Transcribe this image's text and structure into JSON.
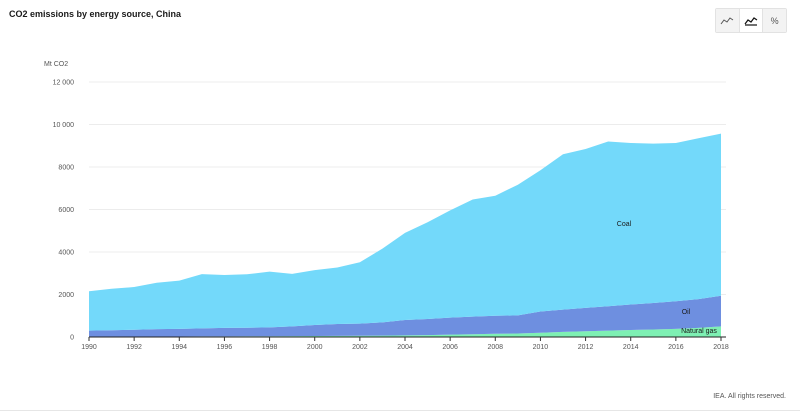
{
  "header": {
    "title": "CO2 emissions by energy source, China"
  },
  "view_buttons": [
    {
      "name": "line-view-button",
      "icon": "line-chart-icon",
      "label": "",
      "active": false
    },
    {
      "name": "area-view-button",
      "icon": "area-chart-icon",
      "label": "",
      "active": true
    },
    {
      "name": "percent-view-button",
      "icon": "percent-icon",
      "label": "%",
      "active": false
    }
  ],
  "footer": {
    "credit": "IEA. All rights reserved."
  },
  "chart_data": {
    "type": "area",
    "stacked": true,
    "title": "CO2 emissions by energy source, China",
    "unit_label": "Mt CO2",
    "xlabel": "",
    "ylabel": "Mt CO2",
    "xlim": [
      1990,
      2018
    ],
    "ylim": [
      0,
      12000
    ],
    "yticks": [
      0,
      2000,
      4000,
      6000,
      8000,
      10000,
      12000
    ],
    "ytick_labels": [
      "0",
      "2000",
      "4000",
      "6000",
      "8000",
      "10 000",
      "12 000"
    ],
    "xticks": [
      1990,
      1992,
      1994,
      1996,
      1998,
      2000,
      2002,
      2004,
      2006,
      2008,
      2010,
      2012,
      2014,
      2016,
      2018
    ],
    "grid": true,
    "legend": "inline labels",
    "x": [
      1990,
      1991,
      1992,
      1993,
      1994,
      1995,
      1996,
      1997,
      1998,
      1999,
      2000,
      2001,
      2002,
      2003,
      2004,
      2005,
      2006,
      2007,
      2008,
      2009,
      2010,
      2011,
      2012,
      2013,
      2014,
      2015,
      2016,
      2017,
      2018
    ],
    "series": [
      {
        "name": "Natural gas",
        "color": "#7ef0b3",
        "values": [
          20,
          20,
          22,
          23,
          25,
          27,
          30,
          33,
          35,
          40,
          45,
          52,
          58,
          67,
          78,
          90,
          110,
          130,
          150,
          165,
          200,
          240,
          270,
          300,
          330,
          350,
          380,
          430,
          500
        ]
      },
      {
        "name": "Oil",
        "color": "#6e8fe0",
        "values": [
          280,
          300,
          320,
          350,
          360,
          380,
          400,
          400,
          420,
          460,
          520,
          560,
          570,
          620,
          720,
          760,
          800,
          830,
          850,
          850,
          1000,
          1050,
          1100,
          1150,
          1200,
          1250,
          1300,
          1350,
          1440
        ]
      },
      {
        "name": "Coal",
        "color": "#73d9fa",
        "values": [
          1850,
          1950,
          2010,
          2180,
          2270,
          2550,
          2490,
          2520,
          2620,
          2470,
          2580,
          2660,
          2890,
          3470,
          4100,
          4550,
          5050,
          5510,
          5650,
          6150,
          6650,
          7310,
          7480,
          7750,
          7600,
          7500,
          7450,
          7570,
          7630
        ]
      }
    ]
  }
}
